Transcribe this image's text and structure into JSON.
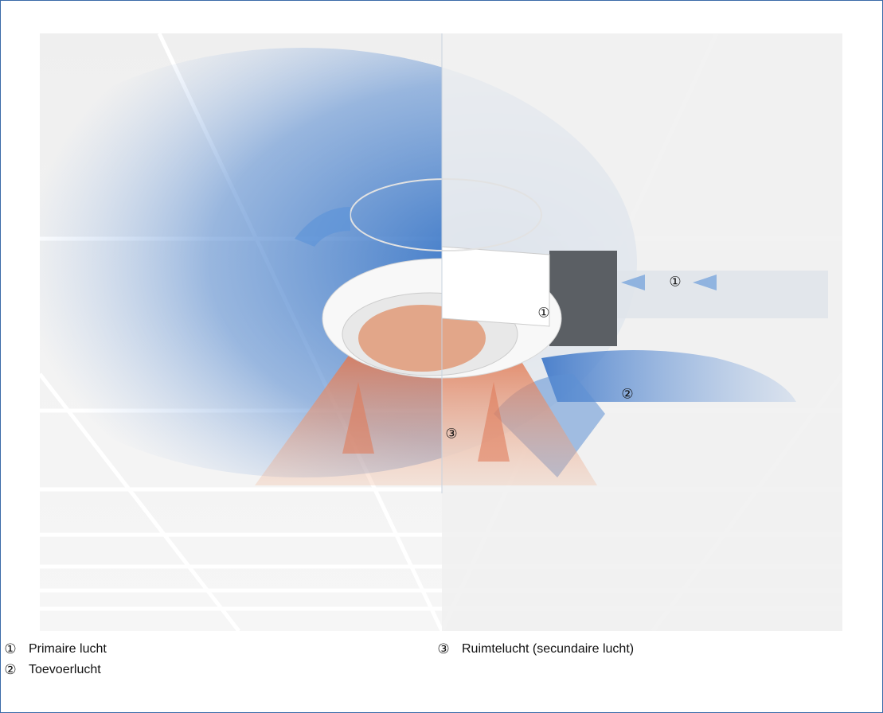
{
  "callouts": [
    "①",
    "①",
    "②",
    "③"
  ],
  "legend": [
    {
      "marker": "①",
      "label": "Primaire lucht"
    },
    {
      "marker": "②",
      "label": "Toevoerlucht"
    },
    {
      "marker": "③",
      "label": "Ruimtelucht (secundaire lucht)"
    }
  ]
}
